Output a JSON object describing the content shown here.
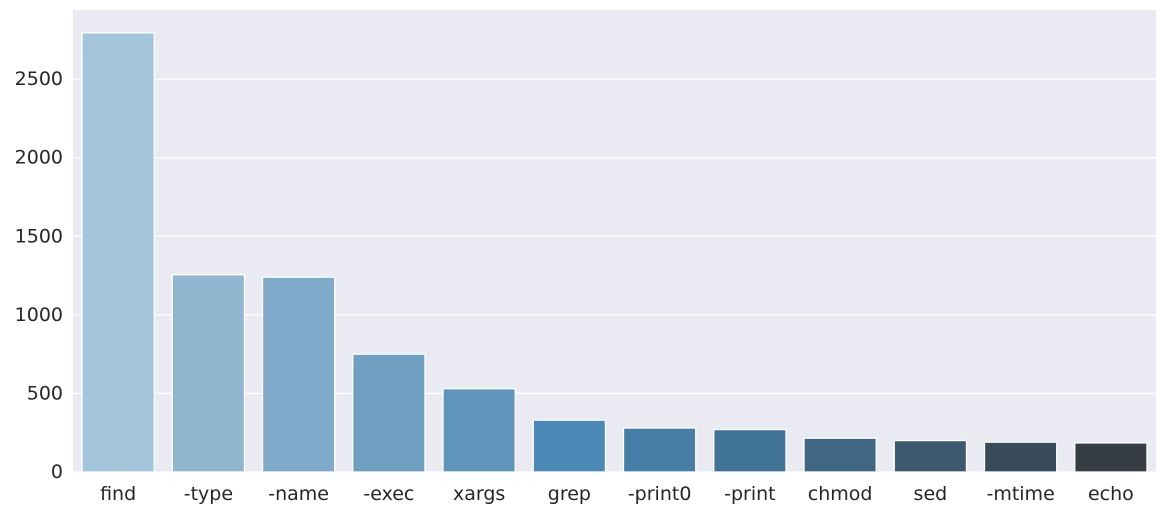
{
  "chart_data": {
    "type": "bar",
    "title": "",
    "xlabel": "",
    "ylabel": "",
    "categories": [
      "find",
      "-type",
      "-name",
      "-exec",
      "xargs",
      "grep",
      "-print0",
      "-print",
      "chmod",
      "sed",
      "-mtime",
      "echo"
    ],
    "values": [
      2795,
      1255,
      1240,
      750,
      530,
      330,
      280,
      270,
      215,
      200,
      190,
      185
    ],
    "ylim": [
      0,
      2940
    ],
    "yticks": [
      0,
      500,
      1000,
      1500,
      2000,
      2500
    ],
    "ytick_labels": [
      "0",
      "500",
      "1000",
      "1500",
      "2000",
      "2500"
    ],
    "grid": true,
    "legend": "none",
    "colors": [
      "#a3c4d9",
      "#91b6d0",
      "#80aac9",
      "#6fa0c2",
      "#5f94bb",
      "#4d89b6",
      "#477ea7",
      "#417396",
      "#3f6682",
      "#3c596e",
      "#384b5b",
      "#363d45"
    ],
    "background": "#eaeaf2",
    "gridline_color": "#ffffff"
  }
}
